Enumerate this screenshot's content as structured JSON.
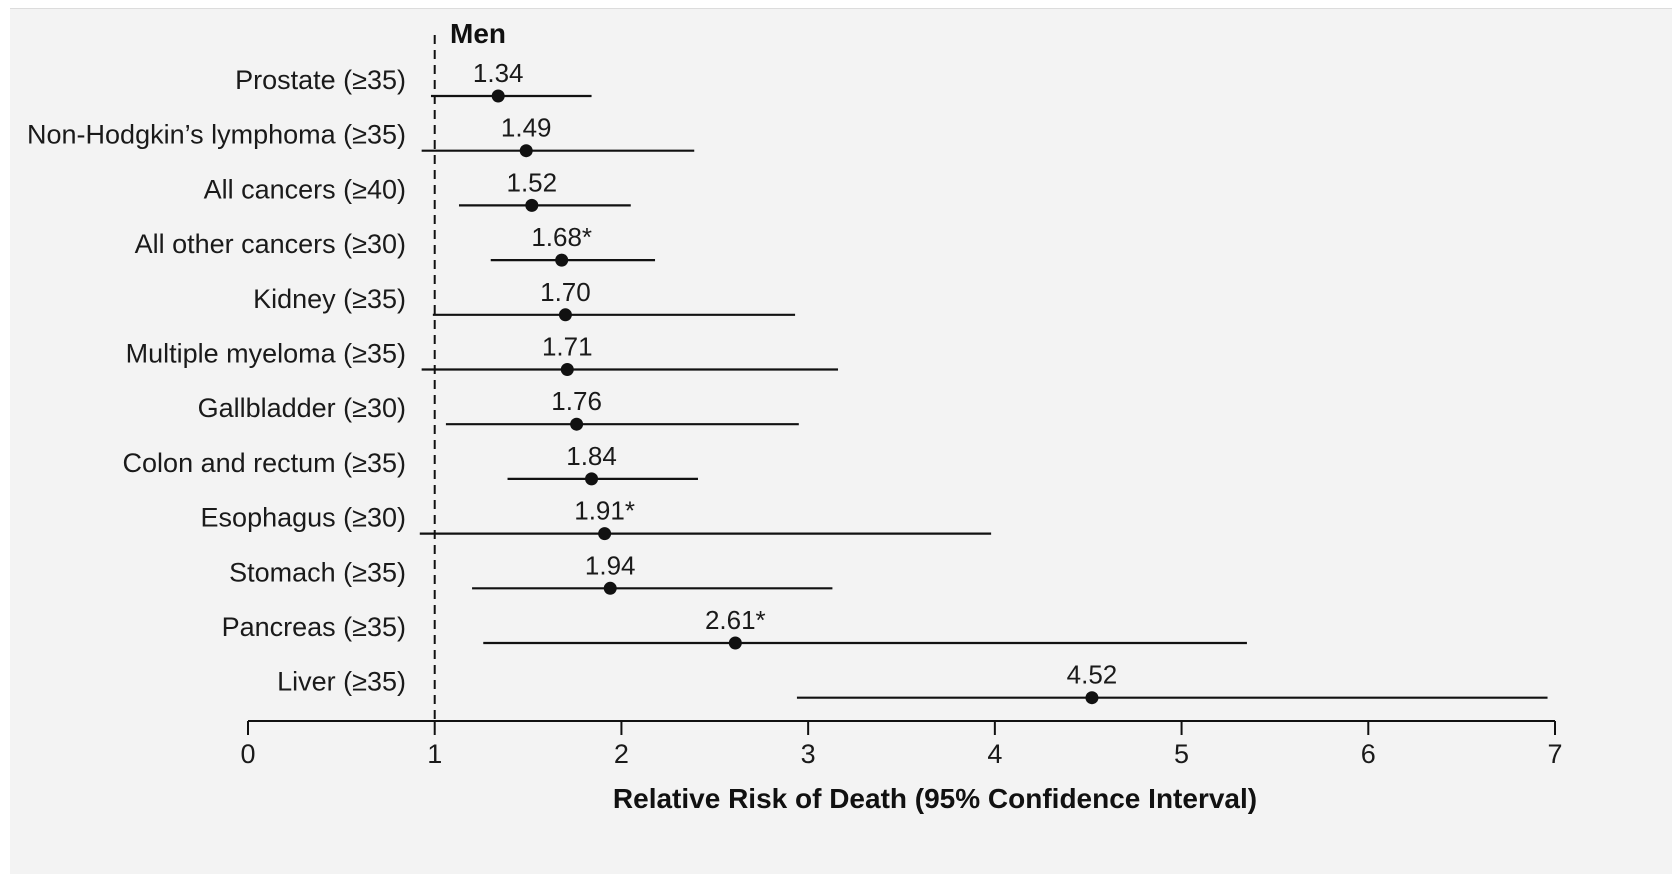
{
  "chart_data": {
    "type": "forest",
    "title": "Men",
    "xlabel": "Relative Risk of Death (95% Confidence Interval)",
    "ylabel": "",
    "xlim": [
      0,
      7
    ],
    "xticks": [
      "0",
      "1",
      "2",
      "3",
      "4",
      "5",
      "6",
      "7"
    ],
    "reference_line": 1,
    "rows": [
      {
        "label": "Prostate (≥35)",
        "value": 1.34,
        "low": 0.98,
        "high": 1.84,
        "text": "1.34"
      },
      {
        "label": "Non-Hodgkin’s lymphoma (≥35)",
        "value": 1.49,
        "low": 0.93,
        "high": 2.39,
        "text": "1.49"
      },
      {
        "label": "All cancers (≥40)",
        "value": 1.52,
        "low": 1.13,
        "high": 2.05,
        "text": "1.52"
      },
      {
        "label": "All other cancers (≥30)",
        "value": 1.68,
        "low": 1.3,
        "high": 2.18,
        "text": "1.68*"
      },
      {
        "label": "Kidney (≥35)",
        "value": 1.7,
        "low": 0.99,
        "high": 2.93,
        "text": "1.70"
      },
      {
        "label": "Multiple myeloma (≥35)",
        "value": 1.71,
        "low": 0.93,
        "high": 3.16,
        "text": "1.71"
      },
      {
        "label": "Gallbladder (≥30)",
        "value": 1.76,
        "low": 1.06,
        "high": 2.95,
        "text": "1.76"
      },
      {
        "label": "Colon and rectum (≥35)",
        "value": 1.84,
        "low": 1.39,
        "high": 2.41,
        "text": "1.84"
      },
      {
        "label": "Esophagus (≥30)",
        "value": 1.91,
        "low": 0.92,
        "high": 3.98,
        "text": "1.91*"
      },
      {
        "label": "Stomach (≥35)",
        "value": 1.94,
        "low": 1.2,
        "high": 3.13,
        "text": "1.94"
      },
      {
        "label": "Pancreas (≥35)",
        "value": 2.61,
        "low": 1.26,
        "high": 5.35,
        "text": "2.61*"
      },
      {
        "label": "Liver (≥35)",
        "value": 4.52,
        "low": 2.94,
        "high": 6.96,
        "text": "4.52"
      }
    ],
    "colors": {
      "marks": "#111111",
      "background": "#f3f3f3"
    }
  }
}
